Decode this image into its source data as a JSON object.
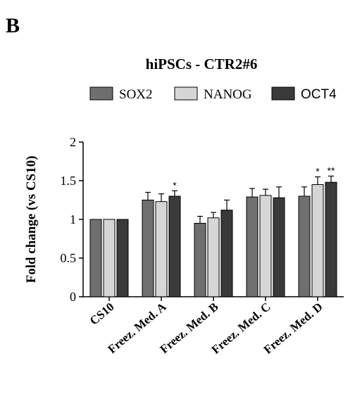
{
  "panel_label": "B",
  "colors": {
    "SOX2": "#6f6f6f",
    "NANOG": "#d6d6d6",
    "OCT4": "#3a3a3a",
    "axis": "#000000"
  },
  "chart_data": {
    "type": "bar",
    "title": "hiPSCs - CTR2#6",
    "xlabel": "",
    "ylabel": "Fold change (vs CS10)",
    "ylim": [
      0,
      2
    ],
    "yticks": [
      0,
      0.5,
      1,
      1.5,
      2
    ],
    "ytick_labels": [
      "0",
      "0.5",
      "1",
      "1.5",
      "2"
    ],
    "categories": [
      "CS10",
      "Freez. Med. A",
      "Freez. Med. B",
      "Freez. Med. C",
      "Freez. Med. D"
    ],
    "legend_position": "top",
    "series": [
      {
        "name": "SOX2",
        "values": [
          1.0,
          1.25,
          0.95,
          1.29,
          1.3
        ],
        "errors": [
          0,
          0.1,
          0.09,
          0.11,
          0.12
        ],
        "annotations": [
          "",
          "",
          "",
          "",
          ""
        ]
      },
      {
        "name": "NANOG",
        "values": [
          1.0,
          1.23,
          1.02,
          1.31,
          1.45
        ],
        "errors": [
          0,
          0.1,
          0.07,
          0.08,
          0.1
        ],
        "annotations": [
          "",
          "",
          "",
          "",
          "*"
        ]
      },
      {
        "name": "OCT4",
        "values": [
          1.0,
          1.3,
          1.12,
          1.28,
          1.48
        ],
        "errors": [
          0,
          0.07,
          0.13,
          0.14,
          0.08
        ],
        "annotations": [
          "",
          "*",
          "",
          "",
          "**"
        ]
      }
    ]
  }
}
